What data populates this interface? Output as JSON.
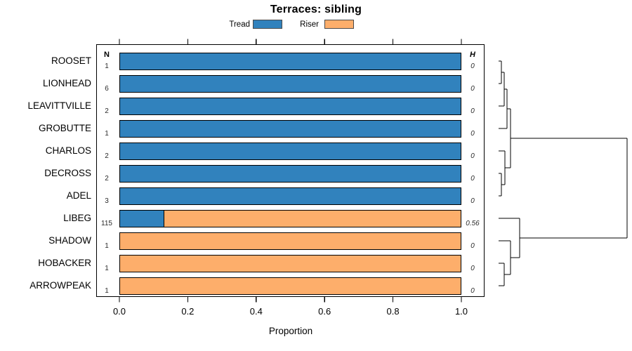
{
  "chart_data": {
    "type": "bar",
    "orientation": "horizontal",
    "stacked": true,
    "title": "Terraces: sibling",
    "xlabel": "Proportion",
    "xlim": [
      0,
      1
    ],
    "x_ticks": [
      "0.0",
      "0.2",
      "0.4",
      "0.6",
      "0.8",
      "1.0"
    ],
    "categories": [
      "ROOSET",
      "LIONHEAD",
      "LEAVITTVILLE",
      "GROBUTTE",
      "CHARLOS",
      "DECROSS",
      "ADEL",
      "LIBEG",
      "SHADOW",
      "HOBACKER",
      "ARROWPEAK"
    ],
    "series": [
      {
        "name": "Tread",
        "color": "#3182bd",
        "values": [
          1,
          1,
          1,
          1,
          1,
          1,
          1,
          0.13,
          0,
          0,
          0
        ]
      },
      {
        "name": "Riser",
        "color": "#fdae6b",
        "values": [
          0,
          0,
          0,
          0,
          0,
          0,
          0,
          0.87,
          1,
          1,
          1
        ]
      }
    ],
    "columns": {
      "n_header": "N",
      "h_header": "H"
    },
    "n_values": [
      "1",
      "6",
      "2",
      "1",
      "2",
      "2",
      "3",
      "115",
      "1",
      "1",
      "1"
    ],
    "h_values": [
      "0",
      "0",
      "0",
      "0",
      "0",
      "0",
      "0",
      "0.56",
      "0",
      "0",
      "0"
    ],
    "legend_position": "top",
    "grid": false,
    "dendrogram": {
      "side": "right",
      "tree": {
        "h": 1.0,
        "children": [
          {
            "h": 0.093,
            "children": [
              {
                "h": 0.066,
                "children": [
                  {
                    "h": 0.044,
                    "children": [
                      {
                        "h": 0.022,
                        "children": [
                          {
                            "leaf": 0
                          },
                          {
                            "leaf": 1
                          }
                        ]
                      },
                      {
                        "leaf": 2
                      }
                    ]
                  },
                  {
                    "leaf": 3
                  }
                ]
              },
              {
                "h": 0.049,
                "children": [
                  {
                    "leaf": 4
                  },
                  {
                    "h": 0.022,
                    "children": [
                      {
                        "leaf": 5
                      },
                      {
                        "leaf": 6
                      }
                    ]
                  }
                ]
              }
            ]
          },
          {
            "h": 0.164,
            "children": [
              {
                "leaf": 7
              },
              {
                "h": 0.093,
                "children": [
                  {
                    "leaf": 8
                  },
                  {
                    "h": 0.044,
                    "children": [
                      {
                        "leaf": 9
                      },
                      {
                        "leaf": 10
                      }
                    ]
                  }
                ]
              }
            ]
          }
        ]
      }
    }
  }
}
